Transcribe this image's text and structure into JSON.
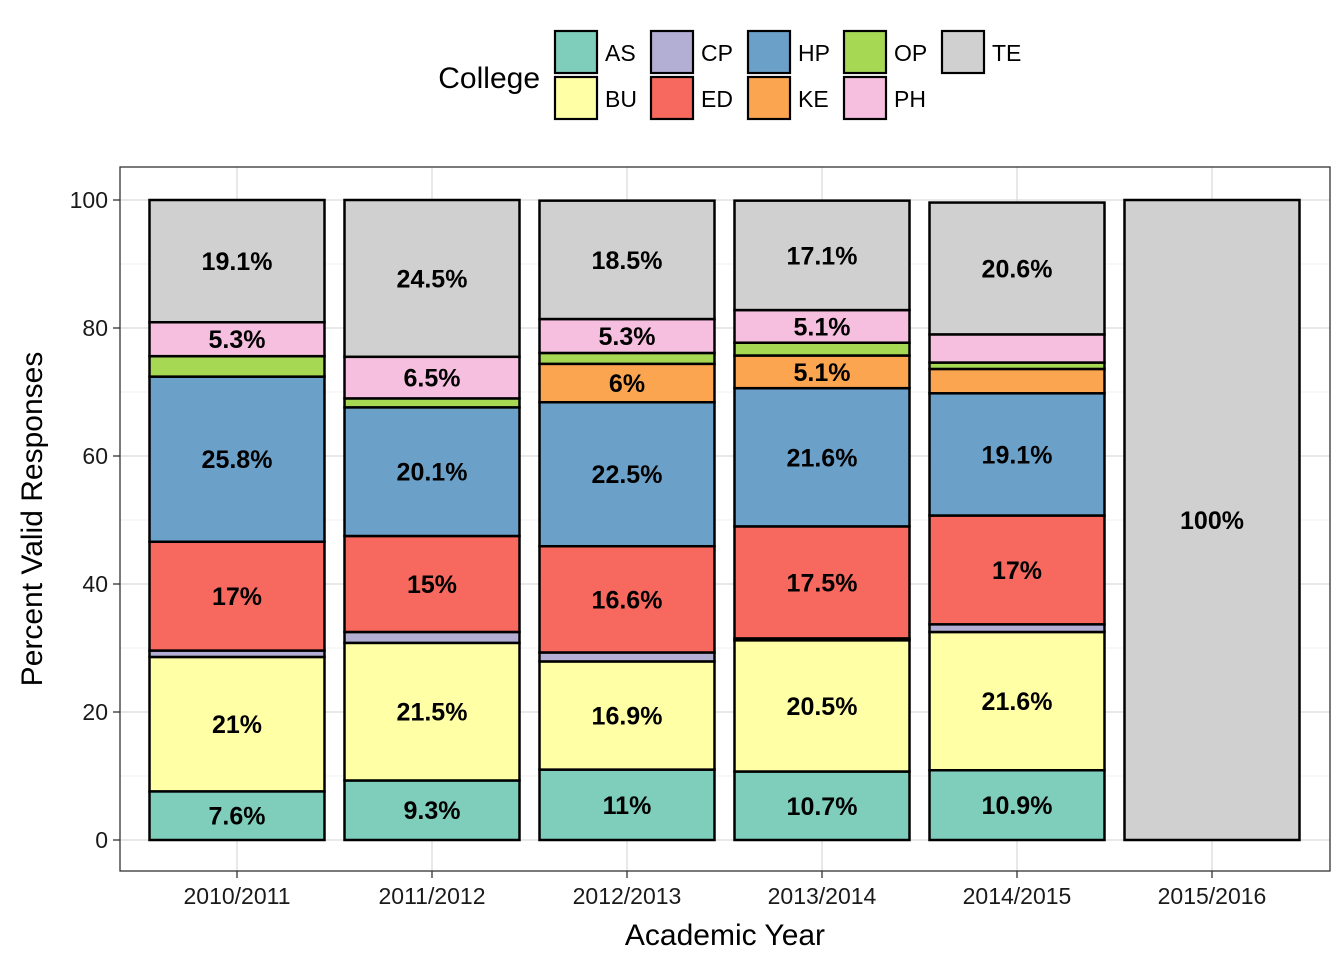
{
  "chart_data": {
    "type": "bar",
    "stacked": true,
    "xlabel": "Academic Year",
    "ylabel": "Percent Valid Responses",
    "ylim": [
      0,
      100
    ],
    "yticks": [
      "0",
      "20",
      "40",
      "60",
      "80",
      "100"
    ],
    "grid": true,
    "legend": {
      "title": "College",
      "placement": "top",
      "entries": [
        "AS",
        "BU",
        "CP",
        "ED",
        "HP",
        "KE",
        "OP",
        "PH",
        "TE"
      ]
    },
    "categories": [
      "2010/2011",
      "2011/2012",
      "2012/2013",
      "2013/2014",
      "2014/2015",
      "2015/2016"
    ],
    "series": [
      {
        "name": "AS",
        "color": "#7FCDBB",
        "values": [
          7.6,
          9.3,
          11.0,
          10.7,
          10.9,
          0
        ]
      },
      {
        "name": "BU",
        "color": "#FFFFA6",
        "values": [
          21.0,
          21.5,
          16.9,
          20.5,
          21.6,
          0
        ]
      },
      {
        "name": "CP",
        "color": "#B3AED4",
        "values": [
          1.0,
          1.7,
          1.4,
          0.3,
          1.2,
          0
        ]
      },
      {
        "name": "ED",
        "color": "#F7695F",
        "values": [
          17.0,
          15.0,
          16.6,
          17.5,
          17.0,
          0
        ]
      },
      {
        "name": "HP",
        "color": "#6BA0C9",
        "values": [
          25.8,
          20.1,
          22.5,
          21.6,
          19.1,
          0
        ]
      },
      {
        "name": "KE",
        "color": "#FBA550",
        "values": [
          0,
          0,
          6.0,
          5.1,
          3.8,
          0
        ]
      },
      {
        "name": "OP",
        "color": "#A6D854",
        "values": [
          3.2,
          1.4,
          1.7,
          2.0,
          1.0,
          0
        ]
      },
      {
        "name": "PH",
        "color": "#F7BFDF",
        "values": [
          5.3,
          6.5,
          5.3,
          5.1,
          4.4,
          0
        ]
      },
      {
        "name": "TE",
        "color": "#D0D0D0",
        "values": [
          19.1,
          24.5,
          18.5,
          17.1,
          20.6,
          100.0
        ]
      }
    ],
    "data_labels": [
      [
        "7.6%",
        "21%",
        "",
        "17%",
        "25.8%",
        "",
        "",
        "5.3%",
        "19.1%"
      ],
      [
        "9.3%",
        "21.5%",
        "",
        "15%",
        "20.1%",
        "",
        "",
        "6.5%",
        "24.5%"
      ],
      [
        "11%",
        "16.9%",
        "",
        "16.6%",
        "22.5%",
        "6%",
        "",
        "5.3%",
        "18.5%"
      ],
      [
        "10.7%",
        "20.5%",
        "",
        "17.5%",
        "21.6%",
        "5.1%",
        "",
        "5.1%",
        "17.1%"
      ],
      [
        "10.9%",
        "21.6%",
        "",
        "17%",
        "19.1%",
        "",
        "",
        "",
        "20.6%"
      ],
      [
        "",
        "",
        "",
        "",
        "",
        "",
        "",
        "",
        "100%"
      ]
    ]
  }
}
